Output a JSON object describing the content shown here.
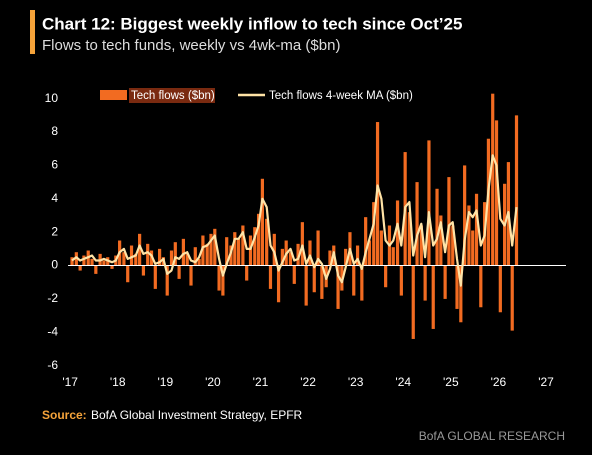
{
  "chart_data": {
    "type": "bar-line",
    "title": "Chart 12: Biggest weekly inflow to tech since Oct’25",
    "subtitle": "Flows to tech funds, weekly vs 4wk-ma ($bn)",
    "source_label": "Source:",
    "source": "BofA Global Investment Strategy, EPFR",
    "credit": "BofA GLOBAL RESEARCH",
    "x": [
      2017.04,
      2017.13,
      2017.21,
      2017.29,
      2017.38,
      2017.46,
      2017.54,
      2017.63,
      2017.71,
      2017.79,
      2017.88,
      2017.96,
      2018.04,
      2018.13,
      2018.21,
      2018.29,
      2018.38,
      2018.46,
      2018.54,
      2018.63,
      2018.71,
      2018.79,
      2018.88,
      2018.96,
      2019.04,
      2019.13,
      2019.21,
      2019.29,
      2019.38,
      2019.46,
      2019.54,
      2019.63,
      2019.71,
      2019.79,
      2019.88,
      2019.96,
      2020.04,
      2020.13,
      2020.21,
      2020.29,
      2020.38,
      2020.46,
      2020.54,
      2020.63,
      2020.71,
      2020.79,
      2020.88,
      2020.96,
      2021.04,
      2021.13,
      2021.21,
      2021.29,
      2021.38,
      2021.46,
      2021.54,
      2021.63,
      2021.71,
      2021.79,
      2021.88,
      2021.96,
      2022.04,
      2022.13,
      2022.21,
      2022.29,
      2022.38,
      2022.46,
      2022.54,
      2022.63,
      2022.71,
      2022.79,
      2022.88,
      2022.96,
      2023.04,
      2023.13,
      2023.21,
      2023.29,
      2023.38,
      2023.46,
      2023.54,
      2023.63,
      2023.71,
      2023.79,
      2023.88,
      2023.96,
      2024.04,
      2024.13,
      2024.21,
      2024.29,
      2024.38,
      2024.46,
      2024.54,
      2024.63,
      2024.71,
      2024.79,
      2024.88,
      2024.96,
      2025.04,
      2025.13,
      2025.21,
      2025.29,
      2025.38,
      2025.46,
      2025.54,
      2025.63,
      2025.71,
      2025.79,
      2025.88,
      2025.96,
      2026.04,
      2026.13,
      2026.21,
      2026.29,
      2026.38
    ],
    "series": [
      {
        "name": "Tech flows ($bn)",
        "kind": "bar",
        "color": "#f26b21",
        "values": [
          0.5,
          0.8,
          -0.3,
          0.6,
          0.9,
          0.4,
          -0.5,
          0.7,
          0.3,
          0.5,
          -0.2,
          0.6,
          1.5,
          0.8,
          -1.0,
          1.2,
          0.7,
          1.9,
          -0.6,
          1.3,
          0.9,
          -1.4,
          1.0,
          0.5,
          -1.8,
          0.9,
          1.4,
          -0.8,
          1.6,
          0.7,
          -1.2,
          1.1,
          0.4,
          1.8,
          1.3,
          1.9,
          2.2,
          -1.5,
          -1.8,
          1.7,
          1.2,
          2.0,
          1.6,
          2.4,
          -0.9,
          1.8,
          2.3,
          3.1,
          5.2,
          2.8,
          -1.4,
          1.9,
          -2.2,
          1.0,
          1.5,
          0.8,
          -1.1,
          1.3,
          2.6,
          -2.4,
          1.5,
          -1.6,
          2.1,
          -2.0,
          -1.3,
          0.9,
          1.2,
          -2.6,
          -1.5,
          1.0,
          2.0,
          -1.8,
          1.2,
          -2.1,
          2.9,
          1.5,
          3.8,
          8.6,
          2.1,
          -1.3,
          2.4,
          1.1,
          3.9,
          -1.8,
          6.8,
          3.2,
          -4.4,
          5.0,
          2.4,
          -2.1,
          7.5,
          -3.8,
          4.6,
          3.0,
          -2.0,
          5.3,
          2.4,
          -2.6,
          -3.4,
          6.0,
          3.6,
          2.1,
          4.3,
          -2.5,
          3.8,
          7.6,
          10.3,
          8.7,
          -2.8,
          4.9,
          6.2,
          -3.9,
          9.0
        ]
      },
      {
        "name": "Tech flows 4-week MA ($bn)",
        "kind": "line",
        "color": "#ffe3a6",
        "values": [
          0.3,
          0.5,
          0.3,
          0.4,
          0.5,
          0.6,
          0.3,
          0.3,
          0.4,
          0.3,
          0.2,
          0.3,
          0.8,
          1.0,
          0.4,
          0.5,
          0.6,
          1.2,
          0.7,
          0.8,
          0.6,
          0.1,
          0.2,
          0.4,
          -0.5,
          -0.3,
          0.5,
          0.4,
          0.7,
          0.8,
          0.3,
          0.2,
          0.5,
          1.1,
          1.2,
          1.5,
          1.8,
          0.4,
          -0.6,
          0.1,
          0.8,
          1.6,
          1.6,
          2.0,
          1.0,
          1.0,
          1.7,
          2.4,
          4.0,
          3.5,
          1.2,
          0.8,
          -0.3,
          0.2,
          0.7,
          1.0,
          0.3,
          0.4,
          1.2,
          0.1,
          0.6,
          -0.1,
          0.4,
          0.1,
          -0.8,
          -0.2,
          0.8,
          -0.6,
          -1.0,
          -0.1,
          1.0,
          0.1,
          0.4,
          -0.2,
          0.8,
          1.6,
          2.5,
          4.8,
          4.0,
          1.5,
          1.2,
          1.5,
          2.5,
          1.2,
          3.5,
          3.8,
          0.6,
          1.8,
          2.5,
          0.5,
          3.2,
          1.2,
          1.6,
          2.6,
          0.8,
          2.4,
          2.6,
          0.4,
          -1.2,
          1.5,
          3.2,
          2.9,
          3.3,
          1.2,
          1.8,
          4.5,
          6.6,
          6.0,
          2.8,
          2.4,
          3.2,
          1.2,
          3.5
        ]
      }
    ],
    "xlim": [
      2016.85,
      2027.42
    ],
    "xticks": [
      {
        "value": 2017,
        "label": "'17"
      },
      {
        "value": 2018,
        "label": "'18"
      },
      {
        "value": 2019,
        "label": "'19"
      },
      {
        "value": 2020,
        "label": "'20"
      },
      {
        "value": 2021,
        "label": "'21"
      },
      {
        "value": 2022,
        "label": "'22"
      },
      {
        "value": 2023,
        "label": "'23"
      },
      {
        "value": 2024,
        "label": "'24"
      },
      {
        "value": 2025,
        "label": "'25"
      },
      {
        "value": 2026,
        "label": "'26"
      },
      {
        "value": 2027,
        "label": "'27"
      }
    ],
    "ylim": [
      -6.5,
      11
    ],
    "yticks": [
      -6,
      -4,
      -2,
      0,
      2,
      4,
      6,
      8,
      10
    ],
    "grid": false
  }
}
